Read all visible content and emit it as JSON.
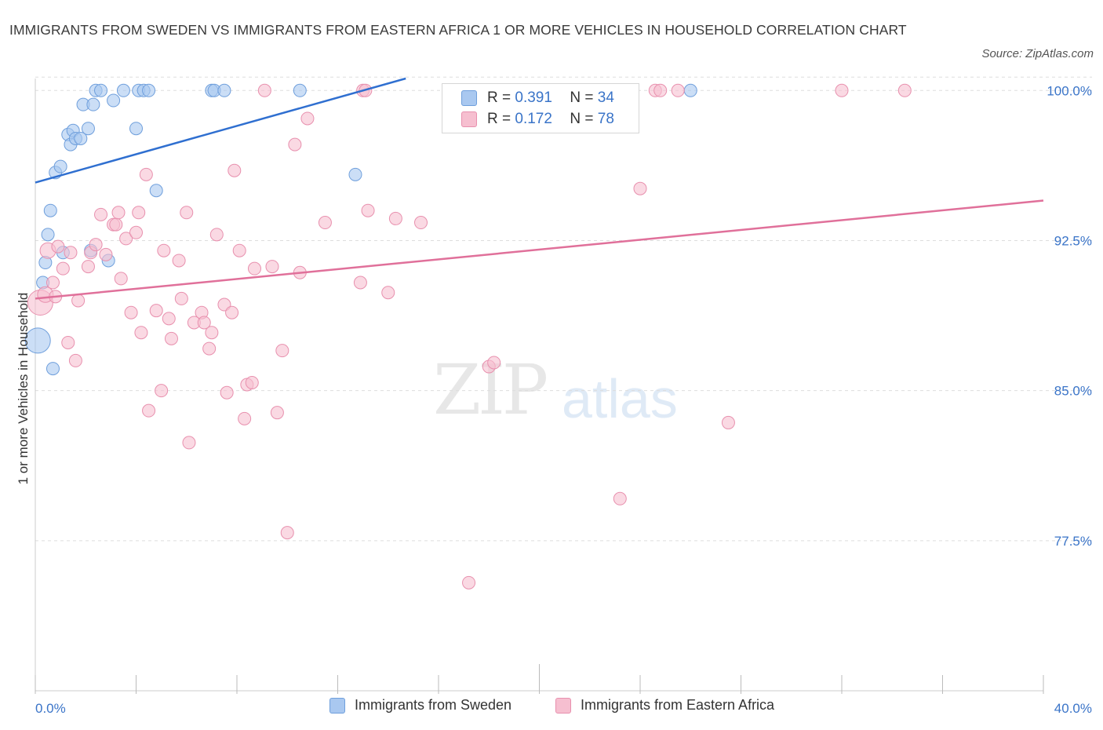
{
  "title": "IMMIGRANTS FROM SWEDEN VS IMMIGRANTS FROM EASTERN AFRICA 1 OR MORE VEHICLES IN HOUSEHOLD CORRELATION CHART",
  "source": "Source: ZipAtlas.com",
  "watermark": {
    "zip": "ZIP",
    "atlas": "atlas"
  },
  "legend": {
    "rows": [
      {
        "r_label": "R =",
        "r_value": "0.391",
        "n_label": "N =",
        "n_value": "34"
      },
      {
        "r_label": "R =",
        "r_value": "0.172",
        "n_label": "N =",
        "n_value": "78"
      }
    ]
  },
  "colors": {
    "sweden_fill": "#a9c8f0",
    "sweden_stroke": "#6f9fdc",
    "sweden_line": "#2f6fd0",
    "africa_fill": "#f6bfd0",
    "africa_stroke": "#e890ae",
    "africa_line": "#e0709a",
    "tick_label": "#3a74c8",
    "grid": "#dddddd"
  },
  "chart_data": {
    "type": "scatter",
    "title": "IMMIGRANTS FROM SWEDEN VS IMMIGRANTS FROM EASTERN AFRICA 1 OR MORE VEHICLES IN HOUSEHOLD CORRELATION CHART",
    "xlabel": "",
    "ylabel": "1 or more Vehicles in Household",
    "xlim": [
      0,
      40
    ],
    "ylim": [
      70.0,
      100.6
    ],
    "x_tick_labels": [
      "0.0%",
      "40.0%"
    ],
    "y_ticks": [
      77.5,
      85.0,
      92.5,
      100.0
    ],
    "y_tick_labels": [
      "77.5%",
      "85.0%",
      "92.5%",
      "100.0%"
    ],
    "grid": true,
    "legend_position": "bottom",
    "series": [
      {
        "name": "Immigrants from Sweden",
        "R": 0.391,
        "N": 34,
        "trend": [
          [
            0,
            95.4
          ],
          [
            14.7,
            100.6
          ]
        ],
        "points": [
          [
            0.1,
            87.5,
            16
          ],
          [
            0.3,
            90.4,
            8
          ],
          [
            0.4,
            91.4,
            8
          ],
          [
            0.5,
            92.8,
            8
          ],
          [
            0.6,
            94.0,
            8
          ],
          [
            0.7,
            86.1,
            8
          ],
          [
            0.8,
            95.9,
            8
          ],
          [
            1.0,
            96.2,
            8
          ],
          [
            1.1,
            91.9,
            8
          ],
          [
            1.3,
            97.8,
            8
          ],
          [
            1.4,
            97.3,
            8
          ],
          [
            1.5,
            98.0,
            8
          ],
          [
            1.6,
            97.6,
            8
          ],
          [
            1.8,
            97.6,
            8
          ],
          [
            1.9,
            99.3,
            8
          ],
          [
            2.1,
            98.1,
            8
          ],
          [
            2.3,
            99.3,
            8
          ],
          [
            2.2,
            92.0,
            8
          ],
          [
            2.4,
            100.0,
            8
          ],
          [
            2.6,
            100.0,
            8
          ],
          [
            2.9,
            91.5,
            8
          ],
          [
            3.1,
            99.5,
            8
          ],
          [
            3.5,
            100.0,
            8
          ],
          [
            4.0,
            98.1,
            8
          ],
          [
            4.1,
            100.0,
            8
          ],
          [
            4.3,
            100.0,
            8
          ],
          [
            4.5,
            100.0,
            8
          ],
          [
            4.8,
            95.0,
            8
          ],
          [
            7.0,
            100.0,
            8
          ],
          [
            7.1,
            100.0,
            8
          ],
          [
            7.5,
            100.0,
            8
          ],
          [
            10.5,
            100.0,
            8
          ],
          [
            12.7,
            95.8,
            8
          ],
          [
            26.0,
            100.0,
            8
          ]
        ]
      },
      {
        "name": "Immigrants from Eastern Africa",
        "R": 0.172,
        "N": 78,
        "trend": [
          [
            0,
            89.6
          ],
          [
            40,
            94.5
          ]
        ],
        "points": [
          [
            0.2,
            89.4,
            16
          ],
          [
            0.4,
            89.8,
            10
          ],
          [
            0.5,
            92.0,
            10
          ],
          [
            0.7,
            90.4,
            8
          ],
          [
            0.8,
            89.7,
            8
          ],
          [
            0.9,
            92.2,
            8
          ],
          [
            1.1,
            91.1,
            8
          ],
          [
            1.3,
            87.4,
            8
          ],
          [
            1.4,
            91.9,
            8
          ],
          [
            1.6,
            86.5,
            8
          ],
          [
            1.7,
            89.5,
            8
          ],
          [
            2.1,
            91.2,
            8
          ],
          [
            2.2,
            91.9,
            8
          ],
          [
            2.4,
            92.3,
            8
          ],
          [
            2.6,
            93.8,
            8
          ],
          [
            2.8,
            91.8,
            8
          ],
          [
            3.1,
            93.3,
            8
          ],
          [
            3.2,
            93.3,
            8
          ],
          [
            3.3,
            93.9,
            8
          ],
          [
            3.4,
            90.6,
            8
          ],
          [
            3.6,
            92.6,
            8
          ],
          [
            3.8,
            88.9,
            8
          ],
          [
            4.0,
            92.9,
            8
          ],
          [
            4.1,
            93.9,
            8
          ],
          [
            4.2,
            87.9,
            8
          ],
          [
            4.4,
            95.8,
            8
          ],
          [
            4.5,
            84.0,
            8
          ],
          [
            4.8,
            89.0,
            8
          ],
          [
            5.0,
            85.0,
            8
          ],
          [
            5.1,
            92.0,
            8
          ],
          [
            5.3,
            88.6,
            8
          ],
          [
            5.4,
            87.6,
            8
          ],
          [
            5.7,
            91.5,
            8
          ],
          [
            5.8,
            89.6,
            8
          ],
          [
            6.0,
            93.9,
            8
          ],
          [
            6.1,
            82.4,
            8
          ],
          [
            6.3,
            88.4,
            8
          ],
          [
            6.6,
            88.9,
            8
          ],
          [
            6.7,
            88.4,
            8
          ],
          [
            6.9,
            87.1,
            8
          ],
          [
            7.0,
            87.9,
            8
          ],
          [
            7.2,
            92.8,
            8
          ],
          [
            7.5,
            89.3,
            8
          ],
          [
            7.6,
            84.9,
            8
          ],
          [
            7.8,
            88.9,
            8
          ],
          [
            7.9,
            96.0,
            8
          ],
          [
            8.1,
            92.0,
            8
          ],
          [
            8.3,
            83.6,
            8
          ],
          [
            8.4,
            85.3,
            8
          ],
          [
            8.6,
            85.4,
            8
          ],
          [
            8.7,
            91.1,
            8
          ],
          [
            9.1,
            100.0,
            8
          ],
          [
            9.4,
            91.2,
            8
          ],
          [
            9.6,
            83.9,
            8
          ],
          [
            9.8,
            87.0,
            8
          ],
          [
            10.0,
            77.9,
            8
          ],
          [
            10.3,
            97.3,
            8
          ],
          [
            10.5,
            90.9,
            8
          ],
          [
            10.8,
            98.6,
            8
          ],
          [
            11.5,
            93.4,
            8
          ],
          [
            12.9,
            90.4,
            8
          ],
          [
            13.0,
            100.0,
            8
          ],
          [
            13.1,
            100.0,
            8
          ],
          [
            13.2,
            94.0,
            8
          ],
          [
            14.0,
            89.9,
            8
          ],
          [
            14.3,
            93.6,
            8
          ],
          [
            15.3,
            93.4,
            8
          ],
          [
            17.2,
            75.4,
            8
          ],
          [
            18.0,
            86.2,
            8
          ],
          [
            18.2,
            86.4,
            8
          ],
          [
            23.2,
            79.6,
            8
          ],
          [
            24.0,
            95.1,
            8
          ],
          [
            24.6,
            100.0,
            8
          ],
          [
            25.5,
            100.0,
            8
          ],
          [
            24.8,
            100.0,
            8
          ],
          [
            27.5,
            83.4,
            8
          ],
          [
            32.0,
            100.0,
            8
          ],
          [
            34.5,
            100.0,
            8
          ]
        ]
      }
    ]
  },
  "bottom_legend": {
    "sweden": "Immigrants from Sweden",
    "africa": "Immigrants from Eastern Africa"
  }
}
